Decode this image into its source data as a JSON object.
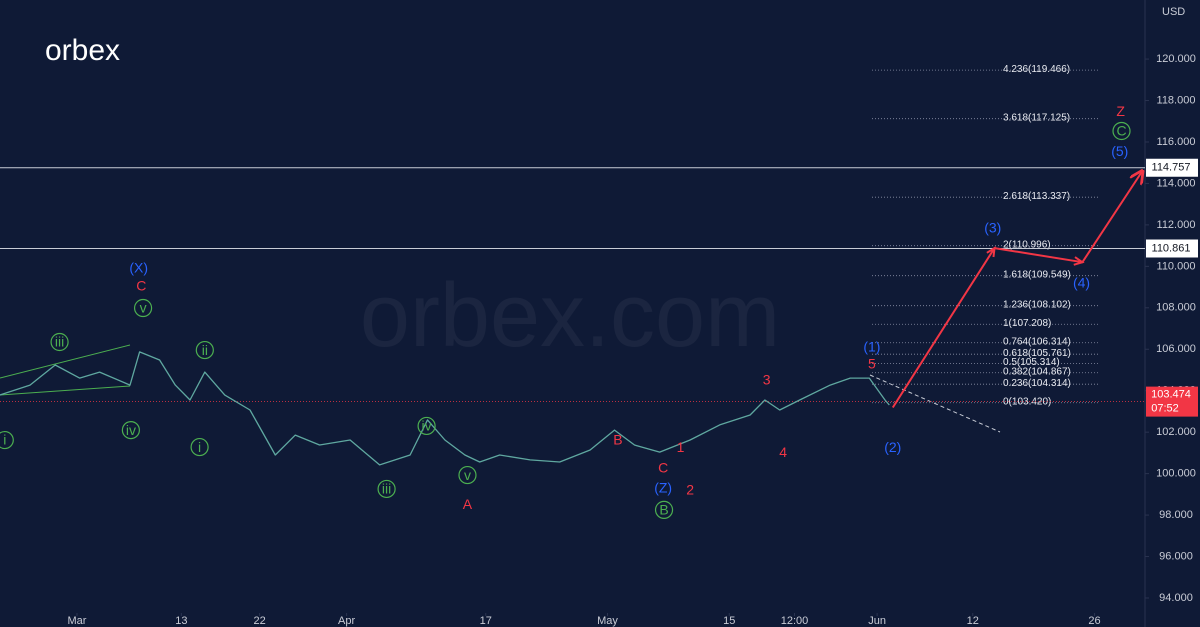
{
  "chart_data": {
    "type": "line",
    "logo": "orbex",
    "watermark": "orbex.com",
    "currency": "USD",
    "xlim": [
      -8.85,
      122.8
    ],
    "ylim": [
      92.6,
      122.85
    ],
    "xticks": [
      {
        "value": 0,
        "label": "Mar"
      },
      {
        "value": 12,
        "label": "13"
      },
      {
        "value": 21,
        "label": "22"
      },
      {
        "value": 31,
        "label": "Apr"
      },
      {
        "value": 47,
        "label": "17"
      },
      {
        "value": 61,
        "label": "May"
      },
      {
        "value": 75,
        "label": "15"
      },
      {
        "value": 82.5,
        "label": "12:00"
      },
      {
        "value": 92,
        "label": "Jun"
      },
      {
        "value": 103,
        "label": "12"
      },
      {
        "value": 117,
        "label": "26"
      }
    ],
    "yticks": [
      {
        "value": 94,
        "label": "94.000"
      },
      {
        "value": 96,
        "label": "96.000"
      },
      {
        "value": 98,
        "label": "98.000"
      },
      {
        "value": 100,
        "label": "100.000"
      },
      {
        "value": 102,
        "label": "102.000"
      },
      {
        "value": 104,
        "label": "104.000"
      },
      {
        "value": 106,
        "label": "106.000"
      },
      {
        "value": 108,
        "label": "108.000"
      },
      {
        "value": 110,
        "label": "110.000"
      },
      {
        "value": 112,
        "label": "112.000"
      },
      {
        "value": 114,
        "label": "114.000"
      },
      {
        "value": 116,
        "label": "116.000"
      },
      {
        "value": 118,
        "label": "118.000"
      },
      {
        "value": 120,
        "label": "120.000"
      }
    ],
    "series": [
      {
        "color": "#5fa8a0",
        "x": [
          -8.9,
          -5.4,
          -2.5,
          0.3,
          2.6,
          6.1,
          7.2,
          9.5,
          11.3,
          13.0,
          14.7,
          17.0,
          19.9,
          22.8,
          25.1,
          27.9,
          31.4,
          34.8,
          38.3,
          40.3,
          42.3,
          44.6,
          46.3,
          48.6,
          52.1,
          55.5,
          59.0,
          61.8,
          64.1,
          67.0,
          70.5,
          73.9,
          77.4,
          79.1,
          80.8,
          83.1,
          86.6,
          88.9,
          91.1,
          92.9,
          93.4
        ],
        "values": [
          103.79,
          104.27,
          105.24,
          104.61,
          104.9,
          104.27,
          105.87,
          105.48,
          104.27,
          103.55,
          104.9,
          103.79,
          103.07,
          100.9,
          101.86,
          101.38,
          101.62,
          100.42,
          100.9,
          102.59,
          101.62,
          100.9,
          100.56,
          100.9,
          100.66,
          100.56,
          101.14,
          102.1,
          101.38,
          101.04,
          101.62,
          102.35,
          102.83,
          103.55,
          103.07,
          103.55,
          104.27,
          104.61,
          104.61,
          103.55,
          103.31
        ]
      },
      {
        "color": "#f23645",
        "arrow": true,
        "x": [
          93.8,
          105.5,
          115.6,
          122.5
        ],
        "values": [
          103.19,
          110.88,
          110.2,
          114.6
        ]
      }
    ],
    "hlines": {
      "color": "#c8ccd6",
      "values": [
        114.757,
        110.861
      ]
    },
    "last_price": {
      "value": 103.474,
      "countdown": "07:52",
      "color": "#f23645"
    },
    "fib": [
      {
        "label": "4.236(119.466)",
        "value": 119.466
      },
      {
        "label": "3.618(117.125)",
        "value": 117.125
      },
      {
        "label": "2.618(113.337)",
        "value": 113.337
      },
      {
        "label": "2(110.996)",
        "value": 110.996
      },
      {
        "label": "1.618(109.549)",
        "value": 109.549
      },
      {
        "label": "1.236(108.102)",
        "value": 108.102
      },
      {
        "label": "1(107.208)",
        "value": 107.208
      },
      {
        "label": "0.764(106.314)",
        "value": 106.314
      },
      {
        "label": "0.618(105.761)",
        "value": 105.761
      },
      {
        "label": "0.5(105.314)",
        "value": 105.314
      },
      {
        "label": "0.382(104.867)",
        "value": 104.867
      },
      {
        "label": "0.236(104.314)",
        "value": 104.314
      },
      {
        "label": "0(103.420)",
        "value": 103.42
      }
    ],
    "annotations": [
      {
        "text": "iii",
        "x": -2.0,
        "y": 106.35,
        "color": "#4caf50",
        "circle": true
      },
      {
        "text": "v",
        "x": 7.6,
        "y": 107.99,
        "color": "#4caf50",
        "circle": true
      },
      {
        "text": "ii",
        "x": 14.7,
        "y": 105.96,
        "color": "#4caf50",
        "circle": true
      },
      {
        "text": "iv",
        "x": 6.2,
        "y": 102.1,
        "color": "#4caf50",
        "circle": true
      },
      {
        "text": "i",
        "x": 14.1,
        "y": 101.28,
        "color": "#4caf50",
        "circle": true
      },
      {
        "text": "i",
        "x": -8.3,
        "y": 101.62,
        "color": "#4caf50",
        "circle": true
      },
      {
        "text": "iv",
        "x": 40.2,
        "y": 102.3,
        "color": "#4caf50",
        "circle": true
      },
      {
        "text": "iii",
        "x": 35.6,
        "y": 99.26,
        "color": "#4caf50",
        "circle": true
      },
      {
        "text": "v",
        "x": 44.9,
        "y": 99.93,
        "color": "#4caf50",
        "circle": true
      },
      {
        "text": "B",
        "x": 67.5,
        "y": 98.25,
        "color": "#4caf50",
        "circle": true
      },
      {
        "text": "C",
        "x": 120.1,
        "y": 116.53,
        "color": "#4caf50",
        "circle": true
      },
      {
        "text": "C",
        "x": 7.4,
        "y": 109.05,
        "color": "#f23645"
      },
      {
        "text": "A",
        "x": 44.9,
        "y": 98.53,
        "color": "#f23645"
      },
      {
        "text": "B",
        "x": 62.2,
        "y": 101.62,
        "color": "#f23645"
      },
      {
        "text": "C",
        "x": 67.4,
        "y": 100.27,
        "color": "#f23645"
      },
      {
        "text": "1",
        "x": 69.4,
        "y": 101.28,
        "color": "#f23645"
      },
      {
        "text": "2",
        "x": 70.5,
        "y": 99.21,
        "color": "#f23645"
      },
      {
        "text": "3",
        "x": 79.3,
        "y": 104.52,
        "color": "#f23645"
      },
      {
        "text": "4",
        "x": 81.2,
        "y": 101.04,
        "color": "#f23645"
      },
      {
        "text": "5",
        "x": 91.4,
        "y": 105.29,
        "color": "#f23645"
      },
      {
        "text": "Z",
        "x": 120.0,
        "y": 117.49,
        "color": "#f23645"
      },
      {
        "text": "(X)",
        "x": 7.1,
        "y": 109.92,
        "color": "#2962ff"
      },
      {
        "text": "(Z)",
        "x": 67.4,
        "y": 99.31,
        "color": "#2962ff"
      },
      {
        "text": "(1)",
        "x": 91.4,
        "y": 106.11,
        "color": "#2962ff"
      },
      {
        "text": "(2)",
        "x": 93.8,
        "y": 101.28,
        "color": "#2962ff"
      },
      {
        "text": "(3)",
        "x": 105.3,
        "y": 111.85,
        "color": "#2962ff"
      },
      {
        "text": "(4)",
        "x": 115.5,
        "y": 109.2,
        "color": "#2962ff"
      },
      {
        "text": "(5)",
        "x": 119.9,
        "y": 115.56,
        "color": "#2962ff"
      }
    ]
  }
}
